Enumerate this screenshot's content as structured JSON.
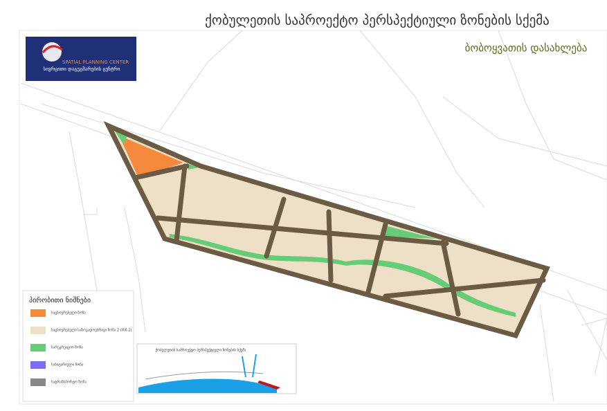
{
  "header": {
    "title": "ქობულეთის საპროექტო პერსპექტიული ზონების სქემა",
    "subtitle": "ბობოყვათის დასახლება"
  },
  "logo": {
    "name": "SPATIAL PLANNING CENTER",
    "name_local": "სივრცითი დაგეგმარების ცენტრი"
  },
  "legend": {
    "title": "პირობითი ნიშნები",
    "items": [
      {
        "label": "საცხოვრებელი ზონა",
        "color": "#f58a3c"
      },
      {
        "label": "საცხოვრებელი საზოგადოებრივი ზონა 2 (სსზ-2)",
        "color": "#eee0c6"
      },
      {
        "label": "სარეკრეაციო ზონა",
        "color": "#66cc77"
      },
      {
        "label": "სანიტარიული ზონა",
        "color": "#7b6cf0"
      },
      {
        "label": "სატრანსპორტო ზონა",
        "color": "#888888"
      }
    ]
  },
  "inset": {
    "title": "ქობულეთის საპროექტო პერსპექტიული ზონების სქემა"
  }
}
